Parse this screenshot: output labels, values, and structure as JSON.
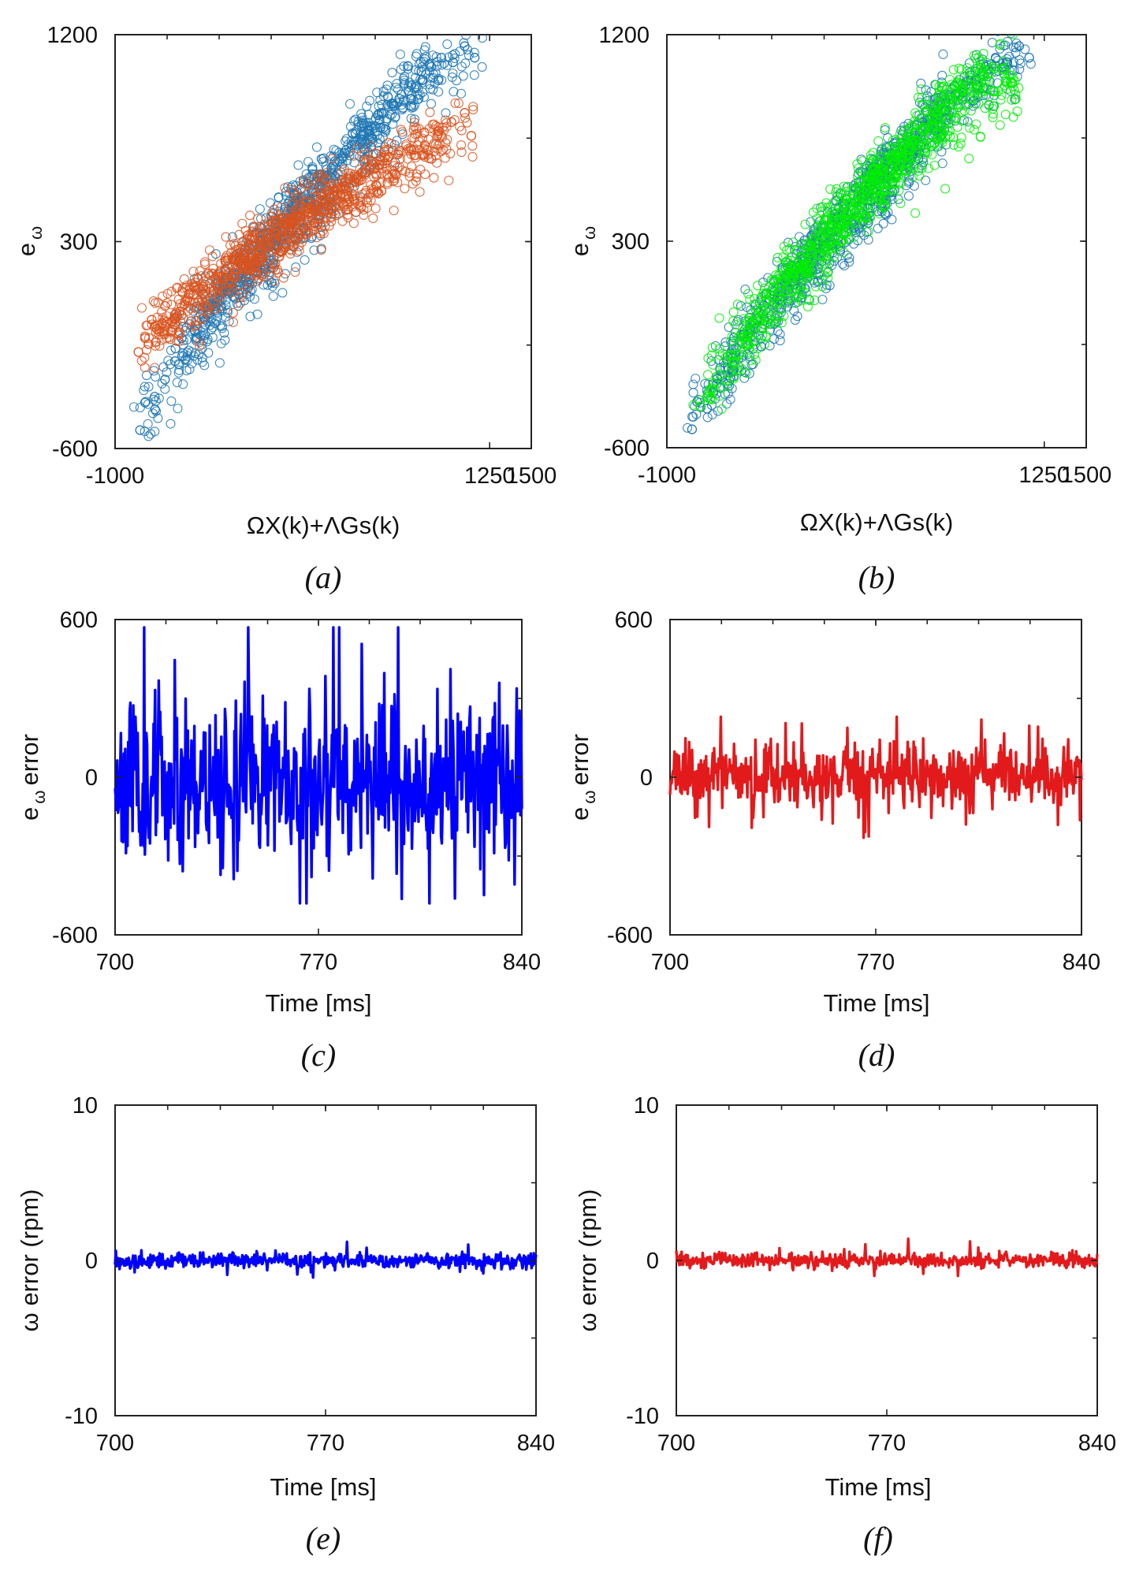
{
  "chart_data": [
    {
      "type": "scatter",
      "panel_caption": "(a)",
      "xlabel": "ΩX(k)+ΛGs(k)",
      "ylabel": "e",
      "ylabel_sub": "ω",
      "xlim": [
        -1000,
        1500
      ],
      "ylim": [
        -600,
        1200
      ],
      "xticks": [
        -1000,
        1250,
        1500
      ],
      "xtick_labels": [
        "-1000",
        "1250",
        "1500"
      ],
      "yticks": [
        -600,
        300,
        1200
      ],
      "ytick_labels": [
        "-600",
        "300",
        "1200"
      ],
      "grid": false,
      "marker": "open-circle",
      "series": [
        {
          "name": "blue",
          "color": "#1f77b4",
          "points": [
            [
              -850,
              -520
            ],
            [
              -820,
              -400
            ],
            [
              -760,
              -430
            ],
            [
              -700,
              -300
            ],
            [
              -640,
              -220
            ],
            [
              -600,
              -120
            ],
            [
              -520,
              -90
            ],
            [
              -460,
              -40
            ],
            [
              -420,
              20
            ],
            [
              -360,
              80
            ],
            [
              -300,
              140
            ],
            [
              -240,
              160
            ],
            [
              -180,
              230
            ],
            [
              -120,
              300
            ],
            [
              -60,
              320
            ],
            [
              0,
              400
            ],
            [
              60,
              440
            ],
            [
              120,
              470
            ],
            [
              180,
              520
            ],
            [
              240,
              560
            ],
            [
              300,
              620
            ],
            [
              360,
              660
            ],
            [
              420,
              720
            ],
            [
              480,
              760
            ],
            [
              540,
              800
            ],
            [
              600,
              860
            ],
            [
              660,
              900
            ],
            [
              720,
              940
            ],
            [
              780,
              980
            ],
            [
              840,
              1040
            ],
            [
              900,
              1060
            ],
            [
              960,
              1100
            ],
            [
              1030,
              1080
            ],
            [
              1100,
              1150
            ],
            [
              1160,
              1100
            ],
            [
              300,
              420
            ],
            [
              200,
              380
            ],
            [
              -100,
              180
            ],
            [
              -200,
              100
            ],
            [
              500,
              660
            ]
          ]
        },
        {
          "name": "orange",
          "color": "#d9541e",
          "points": [
            [
              -860,
              -180
            ],
            [
              -820,
              -120
            ],
            [
              -780,
              -40
            ],
            [
              -700,
              20
            ],
            [
              -640,
              -60
            ],
            [
              -580,
              40
            ],
            [
              -520,
              100
            ],
            [
              -460,
              60
            ],
            [
              -400,
              140
            ],
            [
              -340,
              180
            ],
            [
              -280,
              220
            ],
            [
              -220,
              240
            ],
            [
              -160,
              280
            ],
            [
              -100,
              300
            ],
            [
              -40,
              340
            ],
            [
              20,
              380
            ],
            [
              80,
              400
            ],
            [
              140,
              430
            ],
            [
              200,
              460
            ],
            [
              260,
              480
            ],
            [
              320,
              520
            ],
            [
              380,
              540
            ],
            [
              440,
              560
            ],
            [
              500,
              600
            ],
            [
              560,
              620
            ],
            [
              620,
              640
            ],
            [
              700,
              680
            ],
            [
              780,
              700
            ],
            [
              860,
              720
            ],
            [
              940,
              780
            ],
            [
              1020,
              820
            ],
            [
              1100,
              860
            ],
            [
              1140,
              760
            ],
            [
              900,
              660
            ],
            [
              600,
              520
            ],
            [
              400,
              440
            ],
            [
              0,
              260
            ],
            [
              -300,
              120
            ],
            [
              -600,
              -20
            ],
            [
              -750,
              -80
            ]
          ]
        }
      ]
    },
    {
      "type": "scatter",
      "panel_caption": "(b)",
      "xlabel": "ΩX(k)+ΛGs(k)",
      "ylabel": "e",
      "ylabel_sub": "ω",
      "xlim": [
        -1000,
        1500
      ],
      "ylim": [
        -600,
        1200
      ],
      "xticks": [
        -1000,
        1250,
        1500
      ],
      "xtick_labels": [
        "-1000",
        "1250",
        "1500"
      ],
      "yticks": [
        -600,
        300,
        1200
      ],
      "ytick_labels": [
        "-600",
        "300",
        "1200"
      ],
      "grid": false,
      "marker": "open-circle",
      "series": [
        {
          "name": "blue",
          "color": "#1f77b4",
          "points": [
            [
              -850,
              -520
            ],
            [
              -820,
              -400
            ],
            [
              -760,
              -430
            ],
            [
              -700,
              -300
            ],
            [
              -640,
              -220
            ],
            [
              -600,
              -120
            ],
            [
              -520,
              -90
            ],
            [
              -460,
              -40
            ],
            [
              -420,
              20
            ],
            [
              -360,
              80
            ],
            [
              -300,
              140
            ],
            [
              -240,
              160
            ],
            [
              -180,
              230
            ],
            [
              -120,
              300
            ],
            [
              -60,
              320
            ],
            [
              0,
              400
            ],
            [
              60,
              440
            ],
            [
              120,
              470
            ],
            [
              180,
              520
            ],
            [
              240,
              560
            ],
            [
              300,
              620
            ],
            [
              360,
              660
            ],
            [
              420,
              720
            ],
            [
              480,
              760
            ],
            [
              540,
              800
            ],
            [
              600,
              860
            ],
            [
              660,
              900
            ],
            [
              720,
              940
            ],
            [
              780,
              980
            ],
            [
              840,
              1040
            ],
            [
              900,
              1060
            ],
            [
              960,
              1100
            ],
            [
              1030,
              1080
            ],
            [
              1100,
              1150
            ],
            [
              1160,
              1100
            ],
            [
              300,
              420
            ],
            [
              200,
              380
            ],
            [
              -100,
              180
            ],
            [
              -200,
              100
            ],
            [
              500,
              660
            ]
          ]
        },
        {
          "name": "green",
          "color": "#00ee00",
          "points": [
            [
              -800,
              -420
            ],
            [
              -760,
              -380
            ],
            [
              -720,
              -320
            ],
            [
              -680,
              -280
            ],
            [
              -620,
              -200
            ],
            [
              -560,
              -140
            ],
            [
              -500,
              -60
            ],
            [
              -440,
              0
            ],
            [
              -380,
              60
            ],
            [
              -320,
              120
            ],
            [
              -260,
              180
            ],
            [
              -200,
              230
            ],
            [
              -140,
              280
            ],
            [
              -80,
              330
            ],
            [
              -20,
              380
            ],
            [
              40,
              430
            ],
            [
              100,
              470
            ],
            [
              160,
              520
            ],
            [
              220,
              570
            ],
            [
              280,
              610
            ],
            [
              340,
              660
            ],
            [
              400,
              700
            ],
            [
              460,
              740
            ],
            [
              520,
              790
            ],
            [
              580,
              830
            ],
            [
              640,
              880
            ],
            [
              700,
              920
            ],
            [
              760,
              960
            ],
            [
              820,
              1000
            ],
            [
              880,
              1040
            ],
            [
              940,
              1060
            ],
            [
              1000,
              1050
            ],
            [
              1060,
              990
            ],
            [
              1080,
              920
            ],
            [
              300,
              520
            ],
            [
              120,
              420
            ],
            [
              -240,
              160
            ],
            [
              -520,
              -100
            ],
            [
              700,
              860
            ],
            [
              500,
              720
            ]
          ]
        }
      ]
    },
    {
      "type": "line",
      "panel_caption": "(c)",
      "xlabel": "Time [ms]",
      "ylabel": "e",
      "ylabel_sub": "ω",
      "ylabel_suffix": "error",
      "xlim": [
        700,
        840
      ],
      "ylim": [
        -600,
        600
      ],
      "xticks": [
        700,
        770,
        840
      ],
      "xtick_labels": [
        "700",
        "770",
        "840"
      ],
      "yticks": [
        -600,
        0,
        600
      ],
      "ytick_labels": [
        "-600",
        "0",
        "600"
      ],
      "grid": false,
      "series": [
        {
          "name": "error",
          "color": "#0000ff",
          "amplitude": 280,
          "peak_max": 570,
          "peak_min": -480,
          "seed": 11
        }
      ]
    },
    {
      "type": "line",
      "panel_caption": "(d)",
      "xlabel": "Time [ms]",
      "ylabel": "e",
      "ylabel_sub": "ω",
      "ylabel_suffix": "error",
      "xlim": [
        700,
        840
      ],
      "ylim": [
        -600,
        600
      ],
      "xticks": [
        700,
        770,
        840
      ],
      "xtick_labels": [
        "700",
        "770",
        "840"
      ],
      "yticks": [
        -600,
        0,
        600
      ],
      "ytick_labels": [
        "-600",
        "0",
        "600"
      ],
      "grid": false,
      "series": [
        {
          "name": "error",
          "color": "#e31a1c",
          "amplitude": 110,
          "peak_max": 230,
          "peak_min": -230,
          "seed": 23
        }
      ]
    },
    {
      "type": "line",
      "panel_caption": "(e)",
      "xlabel": "Time [ms]",
      "ylabel": "ω error (rpm)",
      "xlim": [
        700,
        840
      ],
      "ylim": [
        -10,
        10
      ],
      "xticks": [
        700,
        770,
        840
      ],
      "xtick_labels": [
        "700",
        "770",
        "840"
      ],
      "yticks": [
        -10,
        0,
        10
      ],
      "ytick_labels": [
        "-10",
        "0",
        "10"
      ],
      "grid": false,
      "series": [
        {
          "name": "error",
          "color": "#0000ff",
          "amplitude": 0.45,
          "peak_max": 1.2,
          "peak_min": -1.1,
          "seed": 37
        }
      ]
    },
    {
      "type": "line",
      "panel_caption": "(f)",
      "xlabel": "Time [ms]",
      "ylabel": "ω error (rpm)",
      "xlim": [
        700,
        840
      ],
      "ylim": [
        -10,
        10
      ],
      "xticks": [
        700,
        770,
        840
      ],
      "xtick_labels": [
        "700",
        "770",
        "840"
      ],
      "yticks": [
        -10,
        0,
        10
      ],
      "ytick_labels": [
        "-10",
        "0",
        "10"
      ],
      "grid": false,
      "series": [
        {
          "name": "error",
          "color": "#e31a1c",
          "amplitude": 0.45,
          "peak_max": 1.4,
          "peak_min": -1.0,
          "seed": 53
        }
      ]
    }
  ]
}
